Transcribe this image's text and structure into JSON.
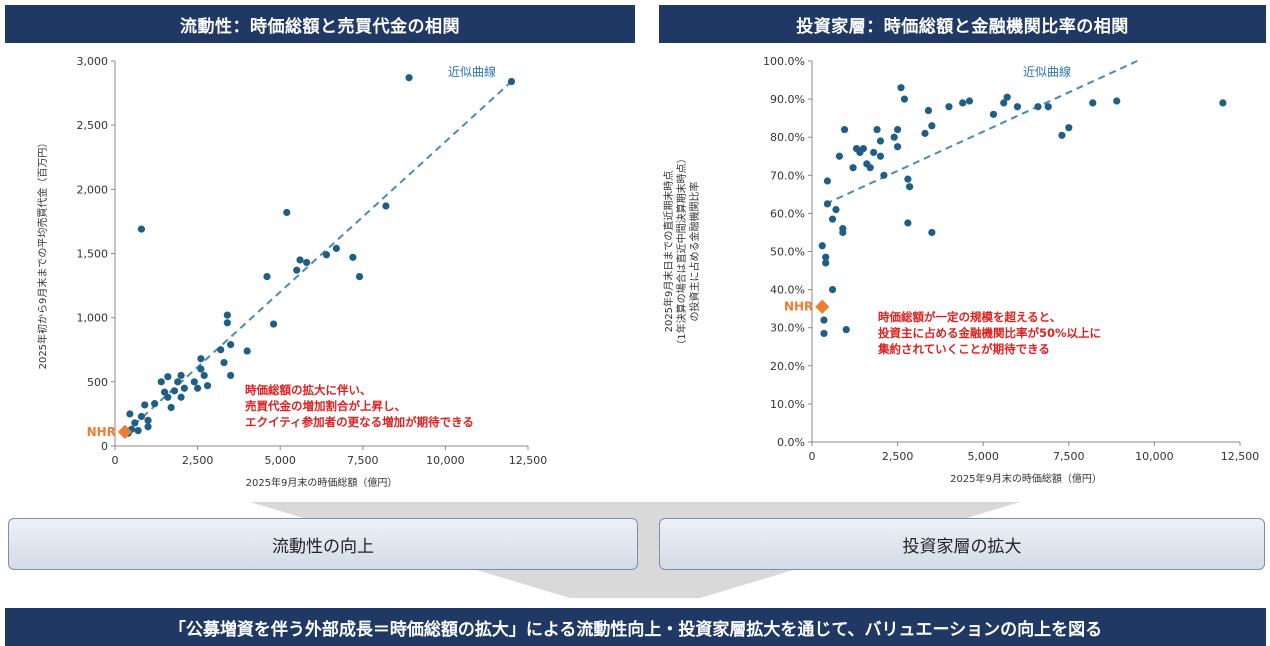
{
  "titles": {
    "left": "流動性：時価総額と売買代金の相関",
    "right": "投資家層：時価総額と金融機関比率の相関"
  },
  "chart_data": [
    {
      "type": "scatter",
      "title": "流動性：時価総額と売買代金の相関",
      "xlabel": "2025年9月末の時価総額（億円）",
      "ylabel": "2025年初から9月末までの平均売買代金（百万円）",
      "xlim": [
        0,
        12500
      ],
      "ylim": [
        0,
        3000
      ],
      "x_ticks": [
        "0",
        "2,500",
        "5,000",
        "7,500",
        "10,000",
        "12,500"
      ],
      "y_ticks": [
        "0",
        "500",
        "1,000",
        "1,500",
        "2,000",
        "2,500",
        "3,000"
      ],
      "trendline": {
        "label": "近似曲線",
        "from": [
          300,
          100
        ],
        "to": [
          12000,
          2840
        ]
      },
      "highlight": {
        "label": "NHR",
        "x": 300,
        "y": 110
      },
      "annotation": [
        "時価総額の拡大に伴い、",
        "売買代金の増加割合が上昇し、",
        "エクイティ参加者の更なる増加が期待できる"
      ],
      "points": [
        [
          400,
          100
        ],
        [
          450,
          250
        ],
        [
          500,
          130
        ],
        [
          600,
          180
        ],
        [
          700,
          120
        ],
        [
          800,
          230
        ],
        [
          900,
          320
        ],
        [
          1000,
          200
        ],
        [
          1000,
          150
        ],
        [
          800,
          1690
        ],
        [
          1200,
          330
        ],
        [
          1400,
          500
        ],
        [
          1500,
          420
        ],
        [
          1600,
          380
        ],
        [
          1600,
          540
        ],
        [
          1700,
          300
        ],
        [
          1800,
          430
        ],
        [
          1900,
          500
        ],
        [
          2000,
          380
        ],
        [
          2000,
          550
        ],
        [
          2100,
          450
        ],
        [
          2400,
          500
        ],
        [
          2500,
          450
        ],
        [
          2600,
          600
        ],
        [
          2600,
          680
        ],
        [
          2700,
          550
        ],
        [
          2800,
          470
        ],
        [
          3200,
          750
        ],
        [
          3300,
          650
        ],
        [
          3400,
          1020
        ],
        [
          3400,
          960
        ],
        [
          3500,
          790
        ],
        [
          3500,
          550
        ],
        [
          4000,
          740
        ],
        [
          4600,
          1320
        ],
        [
          4800,
          950
        ],
        [
          5200,
          1820
        ],
        [
          5500,
          1370
        ],
        [
          5600,
          1450
        ],
        [
          5800,
          1430
        ],
        [
          6400,
          1490
        ],
        [
          6700,
          1540
        ],
        [
          7200,
          1470
        ],
        [
          7400,
          1320
        ],
        [
          8200,
          1870
        ],
        [
          8900,
          2870
        ],
        [
          12000,
          2840
        ]
      ]
    },
    {
      "type": "scatter",
      "title": "投資家層：時価総額と金融機関比率の相関",
      "xlabel": "2025年9月末の時価総額（億円）",
      "ylabel": [
        "2025年9月末日までの直近期末時点",
        "（1年決算の場合は直近中間決算期末時点）",
        "の投資主に占める金融機関比率"
      ],
      "xlim": [
        0,
        12500
      ],
      "ylim": [
        0,
        100
      ],
      "x_ticks": [
        "0",
        "2,500",
        "5,000",
        "7,500",
        "10,000",
        "12,500"
      ],
      "y_ticks": [
        "0.0%",
        "10.0%",
        "20.0%",
        "30.0%",
        "40.0%",
        "50.0%",
        "60.0%",
        "70.0%",
        "80.0%",
        "90.0%",
        "100.0%"
      ],
      "trendline": {
        "label": "近似曲線",
        "from": [
          400,
          62.5
        ],
        "to": [
          9500,
          100
        ]
      },
      "highlight": {
        "label": "NHR",
        "x": 300,
        "y": 35.5
      },
      "annotation": [
        "時価総額が一定の規模を超えると、",
        "投資主に占める金融機関比率が50%以上に",
        "集約されていくことが期待できる"
      ],
      "points": [
        [
          300,
          51.5
        ],
        [
          350,
          32
        ],
        [
          350,
          28.5
        ],
        [
          400,
          48.5
        ],
        [
          400,
          47
        ],
        [
          450,
          62.5
        ],
        [
          450,
          68.5
        ],
        [
          600,
          58.5
        ],
        [
          600,
          40
        ],
        [
          700,
          61
        ],
        [
          800,
          75
        ],
        [
          900,
          55
        ],
        [
          900,
          56
        ],
        [
          950,
          82
        ],
        [
          1000,
          29.5
        ],
        [
          1200,
          72
        ],
        [
          1300,
          77
        ],
        [
          1400,
          76
        ],
        [
          1500,
          77
        ],
        [
          1600,
          73
        ],
        [
          1700,
          72
        ],
        [
          1800,
          76
        ],
        [
          1900,
          82
        ],
        [
          2000,
          79
        ],
        [
          2000,
          75
        ],
        [
          2100,
          70
        ],
        [
          2400,
          80
        ],
        [
          2500,
          82
        ],
        [
          2500,
          77.5
        ],
        [
          2600,
          93
        ],
        [
          2700,
          90
        ],
        [
          2800,
          69
        ],
        [
          2800,
          57.5
        ],
        [
          2850,
          67
        ],
        [
          3300,
          81
        ],
        [
          3400,
          87
        ],
        [
          3500,
          83
        ],
        [
          3500,
          55
        ],
        [
          4000,
          88
        ],
        [
          4400,
          89
        ],
        [
          4600,
          89.5
        ],
        [
          5300,
          86
        ],
        [
          5600,
          89
        ],
        [
          5700,
          90.5
        ],
        [
          6000,
          88
        ],
        [
          6600,
          88
        ],
        [
          6900,
          88
        ],
        [
          7300,
          80.5
        ],
        [
          7500,
          82.5
        ],
        [
          8200,
          89
        ],
        [
          8900,
          89.5
        ],
        [
          12000,
          89
        ]
      ]
    }
  ],
  "boxes": {
    "left": "流動性の向上",
    "right": "投資家層の拡大"
  },
  "conclusion": "「公募増資を伴う外部成長＝時価総額の拡大」による流動性向上・投資家層拡大を通じて、バリュエーションの向上を図る",
  "colors": {
    "navy": "#1f3864",
    "point": "#1f5f85",
    "trend": "#4a8ab5",
    "nhr": "#ed7d31",
    "note": "#e02020"
  }
}
